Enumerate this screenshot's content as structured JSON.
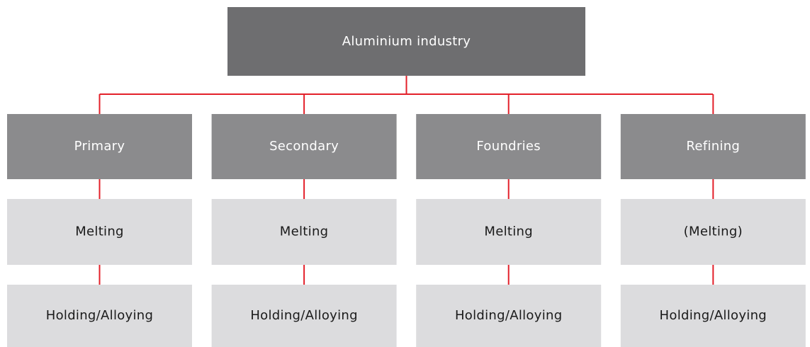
{
  "root": {
    "label": "Aluminium industry"
  },
  "columns": [
    {
      "label": "Primary",
      "steps": [
        "Melting",
        "Holding/Alloying"
      ]
    },
    {
      "label": "Secondary",
      "steps": [
        "Melting",
        "Holding/Alloying"
      ]
    },
    {
      "label": "Foundries",
      "steps": [
        "Melting",
        "Holding/Alloying"
      ]
    },
    {
      "label": "Refining",
      "steps": [
        "(Melting)",
        "Holding/Alloying"
      ]
    }
  ]
}
